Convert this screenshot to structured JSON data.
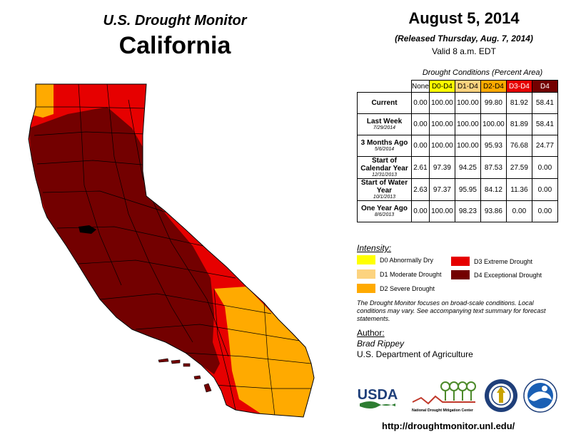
{
  "header": {
    "title": "U.S. Drought Monitor",
    "state": "California",
    "date": "August 5, 2014",
    "released": "(Released Thursday, Aug. 7, 2014)",
    "valid": "Valid 8 a.m. EDT"
  },
  "table": {
    "caption": "Drought Conditions (Percent Area)",
    "columns": [
      {
        "label": "None",
        "color": "#ffffff"
      },
      {
        "label": "D0-D4",
        "color": "#ffff00"
      },
      {
        "label": "D1-D4",
        "color": "#fcd37f"
      },
      {
        "label": "D2-D4",
        "color": "#ffaa00"
      },
      {
        "label": "D3-D4",
        "color": "#e60000"
      },
      {
        "label": "D4",
        "color": "#730000"
      }
    ],
    "rows": [
      {
        "label": "Current",
        "sub": "",
        "values": [
          "0.00",
          "100.00",
          "100.00",
          "99.80",
          "81.92",
          "58.41"
        ]
      },
      {
        "label": "Last Week",
        "sub": "7/29/2014",
        "values": [
          "0.00",
          "100.00",
          "100.00",
          "100.00",
          "81.89",
          "58.41"
        ]
      },
      {
        "label": "3 Months Ago",
        "sub": "5/6/2014",
        "values": [
          "0.00",
          "100.00",
          "100.00",
          "95.93",
          "76.68",
          "24.77"
        ]
      },
      {
        "label": "Start of Calendar Year",
        "sub": "12/31/2013",
        "values": [
          "2.61",
          "97.39",
          "94.25",
          "87.53",
          "27.59",
          "0.00"
        ]
      },
      {
        "label": "Start of Water Year",
        "sub": "10/1/2013",
        "values": [
          "2.63",
          "97.37",
          "95.95",
          "84.12",
          "11.36",
          "0.00"
        ]
      },
      {
        "label": "One Year Ago",
        "sub": "8/6/2013",
        "values": [
          "0.00",
          "100.00",
          "98.23",
          "93.86",
          "0.00",
          "0.00"
        ]
      }
    ]
  },
  "legend": {
    "label": "Intensity:",
    "items": [
      {
        "label": "D0 Abnormally Dry",
        "color": "#ffff00"
      },
      {
        "label": "D1 Moderate Drought",
        "color": "#fcd37f"
      },
      {
        "label": "D2 Severe Drought",
        "color": "#ffaa00"
      },
      {
        "label": "D3 Extreme Drought",
        "color": "#e60000"
      },
      {
        "label": "D4 Exceptional Drought",
        "color": "#730000"
      }
    ]
  },
  "note": "The Drought Monitor focuses on broad-scale conditions. Local conditions may vary. See accompanying text summary for forecast statements.",
  "author": {
    "label": "Author:",
    "name": "Brad Rippey",
    "org": "U.S. Department of Agriculture"
  },
  "logos": {
    "usda": "USDA",
    "ndmc": "National Drought Mitigation Center"
  },
  "url": "http://droughtmonitor.unl.edu/"
}
